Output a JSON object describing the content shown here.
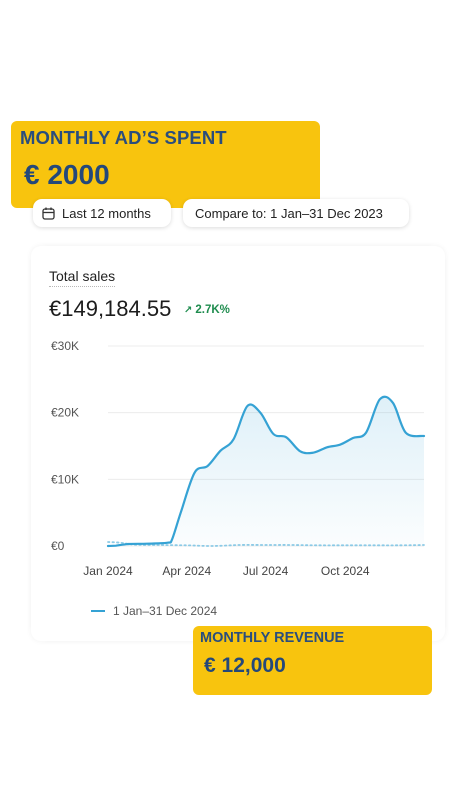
{
  "ad_spend": {
    "label": "MONTHLY AD’S SPENT",
    "value": "€ 2000"
  },
  "filters": {
    "range_label": "Last 12 months",
    "compare_label": "Compare to: 1 Jan–31 Dec 2023"
  },
  "card": {
    "title": "Total sales",
    "total": "€149,184.55",
    "delta": "2.7K%",
    "delta_color": "#1e8c4e"
  },
  "revenue": {
    "label": "MONTHLY REVENUE",
    "value": "€ 12,000"
  },
  "colors": {
    "callout": "#f8c40e",
    "callout_text": "#2a4d7d",
    "series_current": "#35a2d4",
    "series_previous": "#8ecbe6"
  },
  "chart_data": {
    "type": "line",
    "ylim": [
      0,
      30000
    ],
    "yticks": [
      0,
      10000,
      20000,
      30000
    ],
    "ytick_labels": [
      "€0",
      "€10K",
      "€20K",
      "€30K"
    ],
    "xticks": [
      "2024-01-01",
      "2024-04-01",
      "2024-07-01",
      "2024-10-01"
    ],
    "xtick_labels": [
      "Jan 2024",
      "Apr 2024",
      "Jul 2024",
      "Oct 2024"
    ],
    "x_range": [
      "2024-01-01",
      "2024-12-31"
    ],
    "grid": true,
    "legend": "bottom-left",
    "series": [
      {
        "name": "1 Jan–31 Dec 2024",
        "style": "solid",
        "area": true,
        "x": [
          "2024-01-01",
          "2024-01-10",
          "2024-01-25",
          "2024-02-15",
          "2024-03-10",
          "2024-03-15",
          "2024-03-25",
          "2024-04-10",
          "2024-04-25",
          "2024-05-10",
          "2024-05-25",
          "2024-06-10",
          "2024-06-25",
          "2024-07-10",
          "2024-07-25",
          "2024-08-10",
          "2024-08-25",
          "2024-09-10",
          "2024-09-25",
          "2024-10-10",
          "2024-10-25",
          "2024-11-10",
          "2024-11-25",
          "2024-12-10",
          "2024-12-31"
        ],
        "y": [
          0,
          50,
          300,
          350,
          500,
          1000,
          5000,
          11000,
          12000,
          14300,
          16000,
          21000,
          20000,
          16800,
          16300,
          14200,
          14000,
          14800,
          15200,
          16200,
          17000,
          22000,
          21500,
          17000,
          16500
        ]
      },
      {
        "name": "1 Jan–31 Dec 2023",
        "style": "dotted",
        "area": false,
        "x": [
          "2024-01-01",
          "2024-01-15",
          "2024-02-01",
          "2024-03-01",
          "2024-04-01",
          "2024-05-01",
          "2024-06-01",
          "2024-07-01",
          "2024-08-01",
          "2024-09-01",
          "2024-10-01",
          "2024-11-01",
          "2024-12-01",
          "2024-12-31"
        ],
        "y": [
          600,
          500,
          200,
          150,
          100,
          0,
          150,
          150,
          150,
          100,
          100,
          100,
          100,
          150
        ]
      }
    ]
  }
}
